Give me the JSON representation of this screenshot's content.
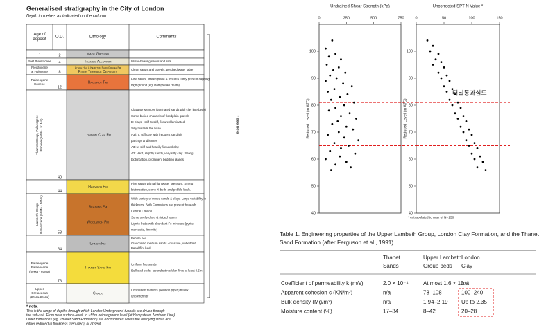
{
  "figure": {
    "title": "Generalised stratigraphy in the City of London",
    "subtitle": "Depth in metres as indicated on the column",
    "headers": [
      [
        "Age of",
        "deposit"
      ],
      [
        "O.D."
      ],
      [
        "Lithology"
      ],
      [
        "Comments"
      ]
    ],
    "layers": [
      {
        "age": [
          "-"
        ],
        "od": 2,
        "color": "#c8c8c8",
        "lithology": [
          "Made Ground"
        ],
        "comments": []
      },
      {
        "age": [
          "Post Pleistocene"
        ],
        "od": 4,
        "color": "#e8e4d0",
        "lithology": [
          "Thames Alluvium"
        ],
        "comments": [
          "Water-bearing sands and silts"
        ]
      },
      {
        "age": [
          "Pleistocene",
          "& Holocene"
        ],
        "od": 8,
        "color": "#f0c860",
        "lithology": [
          "Lynch Hill & Kempton Park Gravel Fm",
          "River Terrace Deposits"
        ],
        "comments": [
          "Clean sands and gravels: perched water table"
        ]
      },
      {
        "age": [
          "Palaeogene",
          "Eocene"
        ],
        "od": 12,
        "color": "#e8743c",
        "lithology": [
          "Bagshot Fm"
        ],
        "comments": [
          "Fine sands, limited plane & fissures. Only present capping",
          "high ground (eg. Hampstead Heath)"
        ]
      },
      {
        "age": [
          "Thames Group, Palaeogene",
          "Eocene (56Ma - 51Ma)"
        ],
        "od": 40,
        "color": "#d4d4d4",
        "lithology": [
          "London Clay Fm"
        ],
        "comments": [
          "Claygate Member (laminated sands with clay interbeds)",
          "Some buried channels of floodplain gravels",
          "B: clays - stiff to stiff, fissured laminated.",
          "Silty towards the base.",
          "A3ii: v. stiff clay with frequent sand/silt",
          "partings and lenses",
          "A3i: v. stiff and heavily fissured clay",
          "A2: Hard, slightly sandy, very silty clay. Strong",
          "bioturbation, prominent bedding planes"
        ]
      },
      {
        "age": [],
        "od": 44,
        "color": "#f2d84a",
        "lithology": [
          "Harwich Fm"
        ],
        "comments": [
          "Fine sands with a high water pressure. Strong",
          "bioturbation, some X-beds and pebble beds."
        ]
      },
      {
        "age": [
          "Lambeth Group",
          "Palaeocene (59Ma - 56Ma)"
        ],
        "od": 58,
        "color": "#c8742c",
        "lithology": [
          "Reading Fm",
          "Woolwich Fm"
        ],
        "comments": [
          "Wide variety of mixed sands & clays. Large variability in",
          "thickness. Both Formations are present beneath",
          "Central London.",
          "Some shelly clays & ridged loams",
          "Lignite beds with abundant Fe minerals (pyrite,",
          "marcasite, limonite)"
        ]
      },
      {
        "age": [],
        "od": 64,
        "color": "#bdbdbd",
        "lithology": [
          "Upnor Fm"
        ],
        "comments": [
          "Pebble bed",
          "Glauconitic medium sands - massive, unbedded",
          "Basal flint bed"
        ]
      },
      {
        "age": [
          "Palaeogene",
          "Palaeocene",
          "(59Ma - 60Ma)"
        ],
        "od": 76,
        "color": "#f4dc3c",
        "lithology": [
          "Thanet Sand Fm"
        ],
        "comments": [
          "Uniform fine sands",
          "Bullhead beds - abundant nodular flints at least 0.5m"
        ]
      },
      {
        "age": [
          "Upper",
          "Cretaceous",
          "(66Ma-65Ma)"
        ],
        "color": "#f8f8f4",
        "lithology": [
          "Chalk"
        ],
        "comments": [
          "Dissolution features (solution pipes) below",
          "unconformity"
        ]
      }
    ],
    "side_note": "* see note",
    "note_title": "* note.",
    "note": [
      "This is the range of depths through which London Underground tunnels are driven through",
      "the sub-soil. From near surface-level, to ~55m below ground level (at Hampstead, Northern Line).",
      "Older formations (eg. Thanet Sand Formation) are encountered where the overlying strata are",
      "either reduced in thickness (denuded), or absent."
    ]
  },
  "charts": [
    {
      "type": "scatter",
      "xlabel": "Undrained Shear Strength (kPa)",
      "ylabel": "Reduced Level (m ATD)",
      "xlim": [
        0,
        750
      ],
      "xticks": [
        0,
        250,
        500,
        750
      ],
      "ylim": [
        40,
        110
      ],
      "yticks": [
        40,
        50,
        60,
        70,
        80,
        90,
        100
      ],
      "color": "#000000",
      "x": [
        120,
        60,
        150,
        90,
        200,
        70,
        180,
        130,
        240,
        100,
        160,
        60,
        220,
        300,
        140,
        80,
        260,
        190,
        110,
        320,
        230,
        150,
        90,
        280,
        200,
        340,
        170,
        120,
        250,
        310,
        180,
        80,
        230,
        360,
        140,
        270,
        200,
        100,
        330,
        190,
        60,
        250,
        150,
        290,
        110
      ],
      "values": [
        104,
        101,
        99,
        98,
        97,
        95,
        94,
        93,
        92,
        91,
        90,
        89,
        88,
        87,
        86,
        85,
        84,
        83,
        82,
        81,
        80,
        79,
        78,
        77,
        76,
        75,
        74,
        73,
        72,
        71,
        70,
        69,
        68,
        67,
        66,
        65,
        64,
        63,
        62,
        61,
        60,
        59,
        58,
        57,
        56
      ],
      "hlines": [
        81,
        65
      ],
      "hline_color": "#e02020"
    },
    {
      "type": "scatter",
      "xlabel": "Uncorrected SPT N Value *",
      "ylabel": "Reduced Level (m ATD)",
      "xlim": [
        0,
        150
      ],
      "xticks": [
        0,
        50,
        100,
        150
      ],
      "ylim": [
        40,
        110
      ],
      "yticks": [
        40,
        50,
        60,
        70,
        80,
        90,
        100
      ],
      "color": "#000000",
      "x": [
        20,
        30,
        25,
        40,
        35,
        45,
        30,
        50,
        40,
        55,
        45,
        60,
        50,
        65,
        55,
        70,
        60,
        75,
        65,
        80,
        70,
        85,
        75,
        90,
        80,
        95,
        85,
        100,
        90,
        105,
        95,
        110,
        100,
        115,
        105,
        120,
        110,
        125
      ],
      "values": [
        104,
        102,
        100,
        99,
        97,
        96,
        95,
        94,
        92,
        91,
        90,
        89,
        87,
        86,
        85,
        84,
        82,
        81,
        80,
        79,
        77,
        76,
        75,
        74,
        72,
        71,
        70,
        69,
        67,
        66,
        65,
        64,
        62,
        61,
        60,
        59,
        57,
        56
      ],
      "hlines": [
        81,
        65
      ],
      "hline_color": "#e02020",
      "annotation": "터널통과심도",
      "footnote": "* extrapolated to max of N=150"
    }
  ],
  "table": {
    "title": [
      "Table 1. Engineering properties of the Upper Lambeth Group, London Clay Formation, and the Thanet",
      "Sand Formation (after Ferguson et al., 1991)."
    ],
    "headers": [
      [],
      [
        "Thanet",
        "Sands"
      ],
      [
        "Upper Lambeth",
        "Group beds"
      ],
      [
        "London",
        "Clay"
      ]
    ],
    "rows": [
      [
        "Coefficient of permeability k (m/s)",
        "2.0 × 10⁻⁴",
        "At most 1.6 × 10⁻⁵",
        "n/a"
      ],
      [
        "Apparent cohesion c (KN/m²)",
        "n/a",
        "78–108",
        "100–240"
      ],
      [
        "Bulk density (Mg/m³)",
        "n/a",
        "1.94–2.19",
        "Up to 2.35"
      ],
      [
        "Moisture content (%)",
        "17–34",
        "8–42",
        "20–28"
      ]
    ]
  }
}
